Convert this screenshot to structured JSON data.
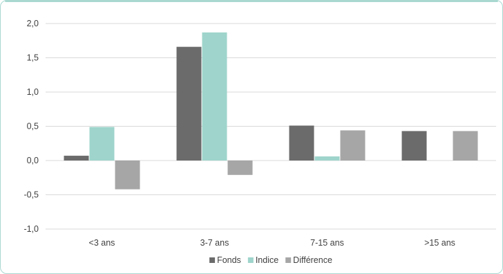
{
  "chart_data": {
    "type": "bar",
    "categories": [
      "<3 ans",
      "3-7 ans",
      "7-15 ans",
      ">15 ans"
    ],
    "series": [
      {
        "name": "Fonds",
        "color": "#6b6b6b",
        "values": [
          0.07,
          1.66,
          0.51,
          0.43
        ]
      },
      {
        "name": "Indice",
        "color": "#9ed4cb",
        "values": [
          0.49,
          1.87,
          0.06,
          0.0
        ]
      },
      {
        "name": "Différence",
        "color": "#a6a6a6",
        "values": [
          -0.42,
          -0.21,
          0.44,
          0.43
        ]
      }
    ],
    "ylim": [
      -1.0,
      2.0
    ],
    "yticks": [
      "2,0",
      "1,5",
      "1,0",
      "0,5",
      "0,0",
      "-0,5",
      "-1,0"
    ],
    "ytick_values": [
      2.0,
      1.5,
      1.0,
      0.5,
      0.0,
      -0.5,
      -1.0
    ],
    "grid": true,
    "legend_position": "bottom"
  }
}
